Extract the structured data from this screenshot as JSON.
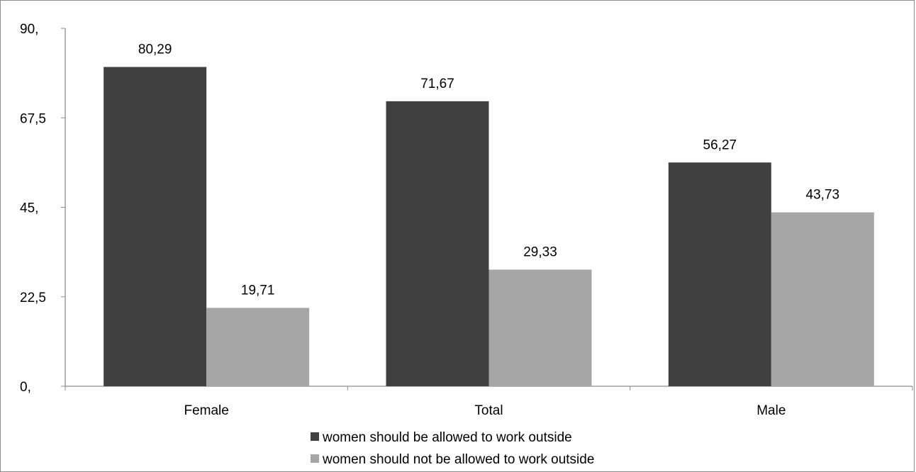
{
  "chart_data": {
    "type": "bar",
    "categories": [
      "Female",
      "Total",
      "Male"
    ],
    "series": [
      {
        "name": "women should be allowed to work outside",
        "values": [
          80.29,
          71.67,
          56.27
        ],
        "labels": [
          "80,29",
          "71,67",
          "56,27"
        ],
        "color": "#404040"
      },
      {
        "name": "women should not be allowed to work outside",
        "values": [
          19.71,
          29.33,
          43.73
        ],
        "labels": [
          "19,71",
          "29,33",
          "43,73"
        ],
        "color": "#a6a6a6"
      }
    ],
    "y_ticks": [
      {
        "value": 0,
        "label": "0,"
      },
      {
        "value": 22.5,
        "label": "22,5"
      },
      {
        "value": 45,
        "label": "45,"
      },
      {
        "value": 67.5,
        "label": "67,5"
      },
      {
        "value": 90,
        "label": "90,"
      }
    ],
    "ylim": [
      0,
      90
    ],
    "grid": false,
    "legend_position": "bottom"
  }
}
